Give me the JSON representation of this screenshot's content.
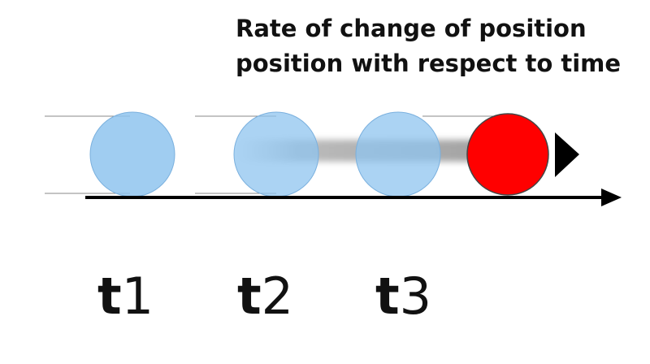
{
  "title": {
    "lines": [
      "Rate of change of position",
      "position with respect to time"
    ]
  },
  "labels": [
    {
      "letter": "t",
      "index": "1"
    },
    {
      "letter": "t",
      "index": "2"
    },
    {
      "letter": "t",
      "index": "3"
    }
  ]
}
